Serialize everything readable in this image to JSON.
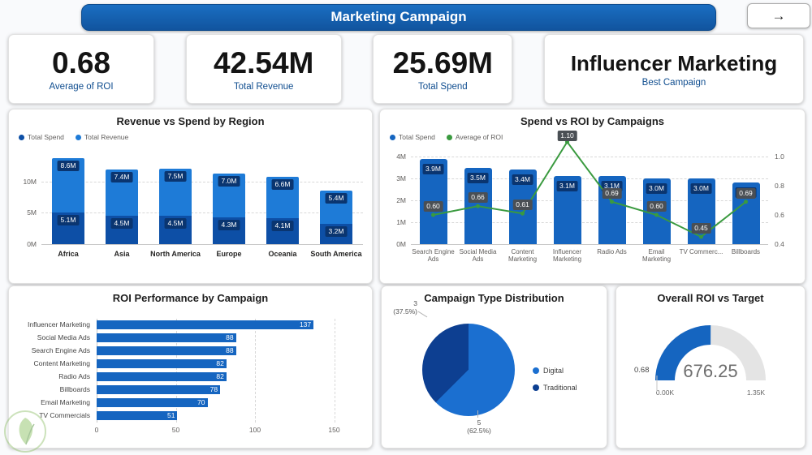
{
  "header": {
    "title": "Marketing Campaign",
    "nav_arrow": "→"
  },
  "kpis": [
    {
      "value": "0.68",
      "label": "Average of ROI"
    },
    {
      "value": "42.54M",
      "label": "Total Revenue"
    },
    {
      "value": "25.69M",
      "label": "Total Spend"
    },
    {
      "value": "Influencer Marketing",
      "label": "Best Campaign"
    }
  ],
  "colors": {
    "header_blue": "#11549e",
    "kpi_label_blue": "#0f4d8f",
    "bar_blue": "#1565c0",
    "revenue_blue": "#1e7bd7",
    "spend_blue": "#0d4fa6",
    "chip_navy": "#0a3570",
    "roi_chip": "#4a4f54",
    "line_green": "#3a9a3f",
    "digital_blue": "#1b6fd0",
    "traditional_blue": "#0d3f91",
    "gauge_track": "#e4e4e4",
    "text_gray": "#605e5c"
  },
  "chart_data": [
    {
      "id": "revenue-vs-spend-by-region",
      "type": "bar",
      "stacked": true,
      "title": "Revenue vs Spend by Region",
      "categories": [
        "Africa",
        "Asia",
        "North America",
        "Europe",
        "Oceania",
        "South America"
      ],
      "series": [
        {
          "name": "Total Spend",
          "color": "#0d4fa6",
          "values": [
            5.1,
            4.5,
            4.5,
            4.3,
            4.1,
            3.2
          ],
          "labels": [
            "5.1M",
            "4.5M",
            "4.5M",
            "4.3M",
            "4.1M",
            "3.2M"
          ]
        },
        {
          "name": "Total Revenue",
          "color": "#1e7bd7",
          "values": [
            8.6,
            7.4,
            7.5,
            7.0,
            6.6,
            5.4
          ],
          "labels": [
            "8.6M",
            "7.4M",
            "7.5M",
            "7.0M",
            "6.6M",
            "5.4M"
          ]
        }
      ],
      "y_ticks": [
        {
          "v": 10,
          "label": "10M"
        },
        {
          "v": 5,
          "label": "5M"
        },
        {
          "v": 0,
          "label": "0M"
        }
      ],
      "ylim": [
        0,
        14
      ],
      "legend": [
        {
          "name": "Total Spend",
          "color": "#0d4fa6"
        },
        {
          "name": "Total Revenue",
          "color": "#1e7bd7"
        }
      ]
    },
    {
      "id": "spend-vs-roi-by-campaigns",
      "type": "combo",
      "title": "Spend vs ROI by Campaigns",
      "categories": [
        "Search Engine Ads",
        "Social Media Ads",
        "Content Marketing",
        "Influencer Marketing",
        "Radio Ads",
        "Email Marketing",
        "TV Commerc...",
        "Billboards"
      ],
      "bar_series": {
        "name": "Total Spend",
        "color": "#1565c0",
        "values": [
          3.9,
          3.5,
          3.4,
          3.1,
          3.1,
          3.0,
          3.0,
          2.8
        ],
        "labels": [
          "3.9M",
          "3.5M",
          "3.4M",
          "3.1M",
          "3.1M",
          "3.0M",
          "3.0M",
          "2.8M"
        ]
      },
      "line_series": {
        "name": "Average of ROI",
        "color": "#3a9a3f",
        "values": [
          0.6,
          0.66,
          0.61,
          1.1,
          0.69,
          0.6,
          0.45,
          0.69
        ],
        "labels": [
          "0.60",
          "0.66",
          "0.61",
          "1.10",
          "0.69",
          "0.60",
          "0.45",
          "0.69"
        ]
      },
      "y_left_ticks": [
        {
          "v": 4,
          "label": "4M"
        },
        {
          "v": 3,
          "label": "3M"
        },
        {
          "v": 2,
          "label": "2M"
        },
        {
          "v": 1,
          "label": "1M"
        },
        {
          "v": 0,
          "label": "0M"
        }
      ],
      "y_left_lim": [
        0,
        4
      ],
      "y_right_ticks": [
        {
          "v": 1.0,
          "label": "1.0"
        },
        {
          "v": 0.8,
          "label": "0.8"
        },
        {
          "v": 0.6,
          "label": "0.6"
        },
        {
          "v": 0.4,
          "label": "0.4"
        }
      ],
      "y_right_lim": [
        0.4,
        1.0
      ],
      "legend": [
        {
          "name": "Total Spend",
          "color": "#1565c0"
        },
        {
          "name": "Average of ROI",
          "color": "#3a9a3f"
        }
      ]
    },
    {
      "id": "roi-performance-by-campaign",
      "type": "bar_horizontal",
      "title": "ROI Performance by Campaign",
      "categories": [
        "Influencer Marketing",
        "Social Media Ads",
        "Search Engine Ads",
        "Content Marketing",
        "Radio Ads",
        "Billboards",
        "Email Marketing",
        "TV Commercials"
      ],
      "values": [
        137,
        88,
        88,
        82,
        82,
        78,
        70,
        51
      ],
      "labels": [
        "137",
        "88",
        "88",
        "82",
        "82",
        "78",
        "70",
        "51"
      ],
      "x_ticks": [
        {
          "v": 0,
          "label": "0"
        },
        {
          "v": 50,
          "label": "50"
        },
        {
          "v": 100,
          "label": "100"
        },
        {
          "v": 150,
          "label": "150"
        }
      ],
      "xlim": [
        0,
        150
      ]
    },
    {
      "id": "campaign-type-distribution",
      "type": "pie",
      "title": "Campaign Type Distribution",
      "slices": [
        {
          "name": "Digital",
          "value": 5,
          "pct": "62.5%",
          "color": "#1b6fd0"
        },
        {
          "name": "Traditional",
          "value": 3,
          "pct": "37.5%",
          "color": "#0d3f91"
        }
      ],
      "legend": [
        {
          "name": "Digital",
          "color": "#1b6fd0"
        },
        {
          "name": "Traditional",
          "color": "#0d3f91"
        }
      ]
    },
    {
      "id": "overall-roi-vs-target",
      "type": "gauge",
      "title": "Overall ROI vs Target",
      "value": 676.25,
      "min": 0,
      "max": 1350,
      "value_label": "676.25",
      "min_label": "0.00K",
      "max_label": "1.35K",
      "target_label": "0.68"
    }
  ]
}
